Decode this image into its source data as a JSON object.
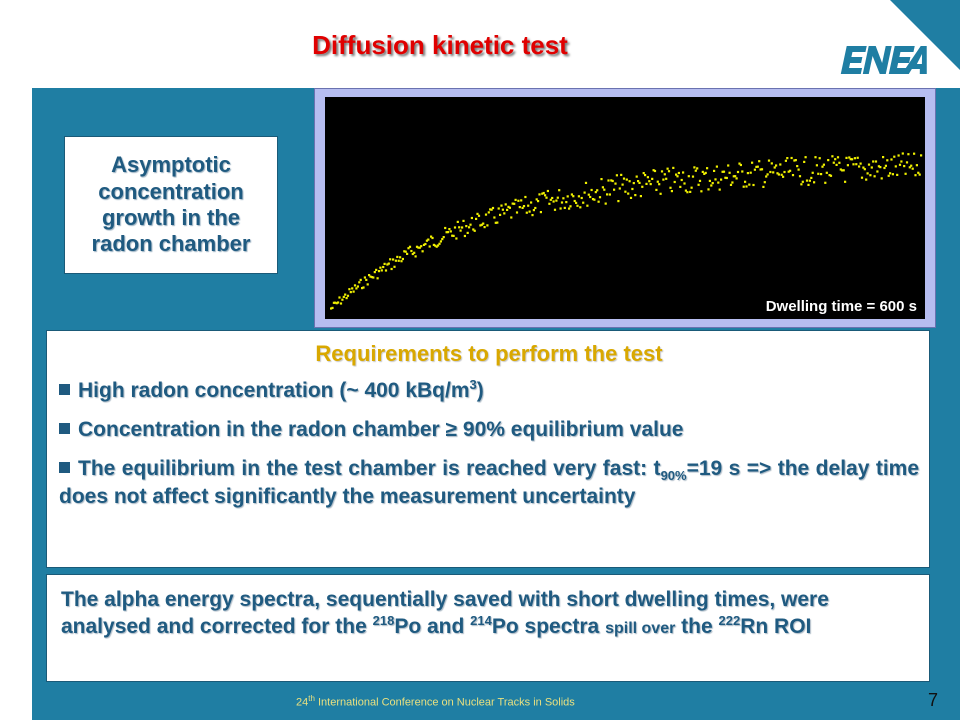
{
  "slide": {
    "title": "Diffusion kinetic test",
    "logo_text": "ENEA",
    "asymptotic_box": "Asymptotic concentration growth in the radon chamber",
    "plot": {
      "dwell_label": "Dwelling time = 600 s",
      "colors": {
        "background": "#000000",
        "points": "#f0f000",
        "frame": "#b6bdf0"
      }
    },
    "requirements": {
      "title": "Requirements to perform the test",
      "bullet1": {
        "text": "High radon concentration (",
        "approx": "~",
        "value": " 400 kBq/m",
        "sup": "3",
        "close": ")"
      },
      "bullet2": "Concentration in the radon chamber ≥ 90% equilibrium value",
      "bullet3": {
        "before": "The equilibrium in the test chamber is reached very fast: t",
        "sub": "90%",
        "after": "=19 s => the delay time does not affect significantly the measurement uncertainty"
      }
    },
    "alpha": {
      "part1": "The alpha energy spectra, sequentially saved with short dwelling times, were analysed and corrected for the ",
      "sup1": "218",
      "part2": "Po and ",
      "sup2": "214",
      "part3": "Po spectra ",
      "small": "spill over",
      "part4": " the ",
      "sup3": "222",
      "part5": "Rn ROI"
    },
    "footer": {
      "conference_sup": "th",
      "conference_num": "24",
      "conference_rest": " International Conference on Nuclear Tracks in Solids"
    },
    "page_number": "7",
    "colors": {
      "accent_blue": "#1f7ea3",
      "title_red": "#e00000",
      "heading_gold": "#d9a800",
      "text_navy": "#1f5a80"
    }
  }
}
